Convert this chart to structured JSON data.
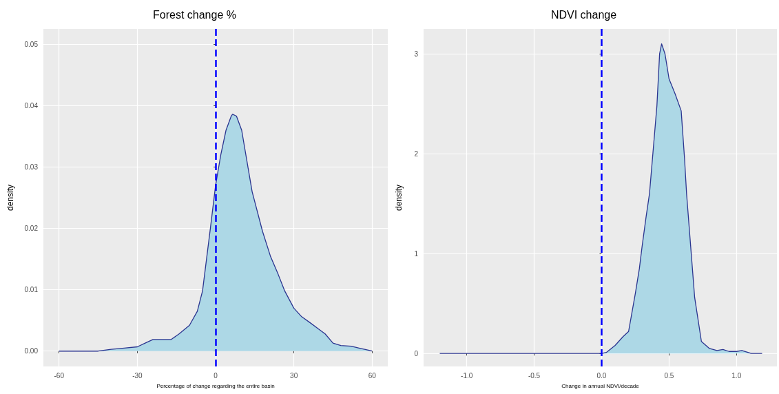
{
  "chart_data": [
    {
      "type": "area",
      "title": "Forest change %",
      "xlabel": "Percentage of change regarding the entire basin",
      "ylabel": "density",
      "xlim": [
        -66,
        66
      ],
      "ylim": [
        -0.0025,
        0.0525
      ],
      "xticks": [
        -60,
        -30,
        0,
        30,
        60
      ],
      "yticks": [
        {
          "value": 0,
          "label": "0.00"
        },
        {
          "value": 0.01,
          "label": "0.01"
        },
        {
          "value": 0.02,
          "label": "0.02"
        },
        {
          "value": 0.03,
          "label": "0.03"
        },
        {
          "value": 0.04,
          "label": "0.04"
        },
        {
          "value": 0.05,
          "label": "0.05"
        }
      ],
      "grid": true,
      "marker": "none",
      "series": [
        {
          "color": "#add8e6",
          "x": [
            -60,
            -45,
            -40,
            -35,
            -30,
            -27,
            -24,
            -20,
            -17,
            -14,
            -10,
            -7,
            -5,
            -2,
            0,
            2,
            4,
            6,
            6.5,
            8,
            10,
            12,
            14,
            18,
            21,
            24,
            26.5,
            30,
            33,
            36,
            39.5,
            42,
            45,
            48,
            52,
            55,
            58,
            60
          ],
          "values": [
            0,
            0,
            0.0003,
            0.0005,
            0.0007,
            0.0013,
            0.0019,
            0.0019,
            0.0019,
            0.0028,
            0.0042,
            0.0065,
            0.0098,
            0.02,
            0.027,
            0.032,
            0.036,
            0.0383,
            0.0386,
            0.0383,
            0.036,
            0.031,
            0.026,
            0.0195,
            0.0155,
            0.0125,
            0.0098,
            0.007,
            0.0056,
            0.0047,
            0.0036,
            0.0028,
            0.0013,
            0.0009,
            0.0008,
            0.0005,
            0.0002,
            0
          ]
        }
      ],
      "ref_lines": [
        {
          "axis": "x",
          "value": 0,
          "color": "#0000ff",
          "line_style": "dashed"
        }
      ]
    },
    {
      "type": "area",
      "title": "NDVI change",
      "xlabel": "Change in annual NDVI/decade",
      "ylabel": "density",
      "xlim": [
        -1.32,
        1.3
      ],
      "ylim": [
        -0.13,
        3.25
      ],
      "xticks": [
        {
          "value": -1,
          "label": "-1.0"
        },
        {
          "value": -0.5,
          "label": "-0.5"
        },
        {
          "value": 0,
          "label": "0.0"
        },
        {
          "value": 0.5,
          "label": "0.5"
        },
        {
          "value": 1,
          "label": "1.0"
        }
      ],
      "yticks": [
        0,
        1,
        2,
        3
      ],
      "grid": true,
      "marker": "none",
      "series": [
        {
          "color": "#add8e6",
          "x": [
            -1.2,
            0,
            0.035,
            0.1,
            0.16,
            0.2,
            0.25,
            0.28,
            0.3,
            0.33,
            0.355,
            0.38,
            0.41,
            0.43,
            0.445,
            0.47,
            0.5,
            0.545,
            0.59,
            0.615,
            0.63,
            0.69,
            0.74,
            0.8,
            0.855,
            0.9,
            0.945,
            1.0,
            1.04,
            1.11,
            1.19
          ],
          "values": [
            0,
            0,
            0.01,
            0.08,
            0.17,
            0.22,
            0.6,
            0.85,
            1.07,
            1.37,
            1.6,
            2.0,
            2.48,
            3.0,
            3.1,
            3.0,
            2.75,
            2.6,
            2.43,
            1.95,
            1.6,
            0.56,
            0.12,
            0.05,
            0.03,
            0.04,
            0.02,
            0.02,
            0.03,
            0,
            0
          ]
        }
      ],
      "ref_lines": [
        {
          "axis": "x",
          "value": 0,
          "color": "#0000ff",
          "line_style": "dashed"
        }
      ]
    }
  ]
}
